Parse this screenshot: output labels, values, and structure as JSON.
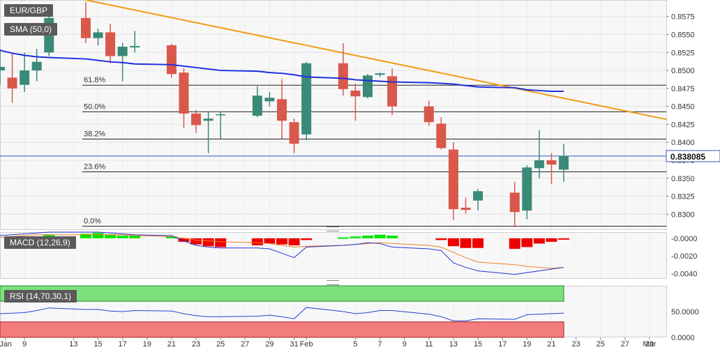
{
  "chart_data": {
    "type": "candlestick",
    "symbol": "EUR/GBP",
    "price_panel": {
      "label": "EUR/GBP",
      "ylim": [
        0.8278,
        0.8598
      ],
      "y_ticks": [
        "0.8575",
        "0.8550",
        "0.8525",
        "0.8500",
        "0.8475",
        "0.8450",
        "0.8425",
        "0.8400",
        "0.8375",
        "0.8350",
        "0.8325",
        "0.8300"
      ],
      "current_price": "0.838085",
      "candles": [
        {
          "d": "Jan 7",
          "o": 0.85,
          "h": 0.853,
          "l": 0.848,
          "c": 0.8505
        },
        {
          "d": "Jan 8",
          "o": 0.849,
          "h": 0.8525,
          "l": 0.8455,
          "c": 0.8475
        },
        {
          "d": "Jan 9",
          "o": 0.848,
          "h": 0.8525,
          "l": 0.847,
          "c": 0.85
        },
        {
          "d": "Jan 10",
          "o": 0.85,
          "h": 0.853,
          "l": 0.8485,
          "c": 0.8512
        },
        {
          "d": "Jan 11",
          "o": 0.8525,
          "h": 0.8585,
          "l": 0.852,
          "c": 0.8573
        },
        {
          "d": "Jan 14",
          "o": 0.8573,
          "h": 0.8595,
          "l": 0.8538,
          "c": 0.8545
        },
        {
          "d": "Jan 15",
          "o": 0.8545,
          "h": 0.8558,
          "l": 0.8535,
          "c": 0.8553
        },
        {
          "d": "Jan 16",
          "o": 0.8553,
          "h": 0.8565,
          "l": 0.851,
          "c": 0.852
        },
        {
          "d": "Jan 17",
          "o": 0.852,
          "h": 0.8538,
          "l": 0.8485,
          "c": 0.8533
        },
        {
          "d": "Jan 18",
          "o": 0.8532,
          "h": 0.8555,
          "l": 0.8525,
          "c": 0.8534
        },
        {
          "d": "Jan 21",
          "o": 0.8535,
          "h": 0.8537,
          "l": 0.849,
          "c": 0.8495
        },
        {
          "d": "Jan 22",
          "o": 0.8497,
          "h": 0.8503,
          "l": 0.842,
          "c": 0.844
        },
        {
          "d": "Jan 23",
          "o": 0.844,
          "h": 0.8445,
          "l": 0.8413,
          "c": 0.8424
        },
        {
          "d": "Jan 24",
          "o": 0.843,
          "h": 0.8443,
          "l": 0.8385,
          "c": 0.8433
        },
        {
          "d": "Jan 25",
          "o": 0.8438,
          "h": 0.8443,
          "l": 0.8405,
          "c": 0.8439
        },
        {
          "d": "Jan 28",
          "o": 0.8437,
          "h": 0.8478,
          "l": 0.8435,
          "c": 0.8465
        },
        {
          "d": "Jan 29",
          "o": 0.8457,
          "h": 0.847,
          "l": 0.845,
          "c": 0.8462
        },
        {
          "d": "Jan 30",
          "o": 0.846,
          "h": 0.8488,
          "l": 0.8405,
          "c": 0.843
        },
        {
          "d": "Jan 31",
          "o": 0.8428,
          "h": 0.8433,
          "l": 0.8385,
          "c": 0.8398
        },
        {
          "d": "Feb 1",
          "o": 0.8411,
          "h": 0.8512,
          "l": 0.8403,
          "c": 0.851
        },
        {
          "d": "Feb 4",
          "o": 0.851,
          "h": 0.8538,
          "l": 0.8465,
          "c": 0.8474
        },
        {
          "d": "Feb 5",
          "o": 0.8472,
          "h": 0.8482,
          "l": 0.843,
          "c": 0.8464
        },
        {
          "d": "Feb 6",
          "o": 0.8463,
          "h": 0.8495,
          "l": 0.8461,
          "c": 0.8493
        },
        {
          "d": "Feb 7",
          "o": 0.8494,
          "h": 0.8497,
          "l": 0.8491,
          "c": 0.8496
        },
        {
          "d": "Feb 8",
          "o": 0.8492,
          "h": 0.8503,
          "l": 0.8438,
          "c": 0.845
        },
        {
          "d": "Feb 11",
          "o": 0.845,
          "h": 0.8458,
          "l": 0.8423,
          "c": 0.8428
        },
        {
          "d": "Feb 12",
          "o": 0.8426,
          "h": 0.8435,
          "l": 0.839,
          "c": 0.8392
        },
        {
          "d": "Feb 13",
          "o": 0.839,
          "h": 0.84,
          "l": 0.8292,
          "c": 0.8307
        },
        {
          "d": "Feb 14",
          "o": 0.8309,
          "h": 0.8323,
          "l": 0.8301,
          "c": 0.8306
        },
        {
          "d": "Feb 15",
          "o": 0.8319,
          "h": 0.8335,
          "l": 0.8305,
          "c": 0.8332
        },
        {
          "d": "Feb 18",
          "o": 0.833,
          "h": 0.8345,
          "l": 0.8282,
          "c": 0.8303
        },
        {
          "d": "Feb 19",
          "o": 0.8305,
          "h": 0.8368,
          "l": 0.8293,
          "c": 0.8365
        },
        {
          "d": "Feb 20",
          "o": 0.8364,
          "h": 0.8417,
          "l": 0.835,
          "c": 0.8375
        },
        {
          "d": "Feb 21",
          "o": 0.8375,
          "h": 0.8385,
          "l": 0.8342,
          "c": 0.8369
        },
        {
          "d": "Feb 22",
          "o": 0.8362,
          "h": 0.8398,
          "l": 0.8345,
          "c": 0.8381
        }
      ],
      "sma": {
        "label": "SMA (50,0)",
        "color": "#1d2fe0",
        "values": [
          0.8528,
          0.8524,
          0.8521,
          0.8519,
          0.8518,
          0.8516,
          0.8514,
          0.8512,
          0.8511,
          0.8509,
          0.8508,
          0.8506,
          0.8504,
          0.8502,
          0.85,
          0.8499,
          0.8497,
          0.8496,
          0.8494,
          0.8491,
          0.8489,
          0.8487,
          0.8486,
          0.8485,
          0.8484,
          0.8483,
          0.8482,
          0.8481,
          0.8479,
          0.8477,
          0.8476,
          0.8473,
          0.8472,
          0.8471,
          0.8471
        ]
      },
      "trendline": {
        "color": "#f39c12",
        "points": [
          {
            "x": "Jan 14",
            "y": 0.8598
          },
          {
            "x": "Mar 1",
            "y": 0.8432
          }
        ]
      },
      "fibonacci": [
        {
          "label": "61.8%",
          "value": 0.84795
        },
        {
          "label": "50.0%",
          "value": 0.84425
        },
        {
          "label": "38.2%",
          "value": 0.84045
        },
        {
          "label": "23.6%",
          "value": 0.8359
        },
        {
          "label": "0.0%",
          "value": 0.82833
        }
      ]
    },
    "macd_panel": {
      "label": "MACD (12,26,9)",
      "ylim": [
        -0.0046,
        0.0007
      ],
      "y_ticks": [
        "-0.0000",
        "-0.0020",
        "-0.0040"
      ],
      "histogram": [
        0,
        0,
        0,
        0,
        0.0004,
        0.0005,
        0.0006,
        0.0004,
        0.0003,
        0.0003,
        0.0002,
        -0.0004,
        -0.0007,
        -0.0009,
        -0.001,
        -0.0008,
        -0.0006,
        -0.0007,
        -0.0008,
        -0.0002,
        0.0001,
        0.0002,
        0.0003,
        0.0004,
        0.0003,
        0,
        -0.0002,
        -0.0009,
        -0.0011,
        -0.0011,
        -0.0012,
        -0.001,
        -0.0006,
        -0.0004,
        -0.0001
      ],
      "macd_line": [
        0.0003,
        0.0004,
        0.0005,
        0.0006,
        0.0007,
        0.0007,
        0.0007,
        0.0006,
        0.0005,
        0.0004,
        0.0003,
        -0.0003,
        -0.0008,
        -0.001,
        -0.0011,
        -0.0011,
        -0.0012,
        -0.0017,
        -0.0022,
        -0.001,
        -0.0008,
        -0.0007,
        -0.0005,
        -0.0006,
        -0.001,
        -0.0012,
        -0.0014,
        -0.0028,
        -0.0033,
        -0.0037,
        -0.0041,
        -0.0039,
        -0.0037,
        -0.0035,
        -0.0033
      ],
      "signal_line": [
        0.0001,
        0.0002,
        0.0003,
        0.0004,
        0.0004,
        0.0004,
        0.0004,
        0.0004,
        0.0004,
        0.0003,
        0.0002,
        0.0,
        -0.0002,
        -0.0003,
        -0.0004,
        -0.0005,
        -0.0006,
        -0.0008,
        -0.001,
        -0.0009,
        -0.0008,
        -0.0007,
        -0.0006,
        -0.0005,
        -0.0006,
        -0.0008,
        -0.001,
        -0.0016,
        -0.0022,
        -0.0027,
        -0.003,
        -0.0032,
        -0.0033,
        -0.0034,
        -0.0033
      ]
    },
    "rsi_panel": {
      "label": "RSI (14,70,30,1)",
      "ylim": [
        0,
        100
      ],
      "y_ticks": [
        "50.0000",
        "0.0000"
      ],
      "overbought": 70,
      "oversold": 30,
      "values": [
        46,
        47,
        48,
        52,
        57,
        54,
        54,
        51,
        50,
        52,
        51,
        46,
        42,
        40,
        40,
        41,
        43,
        40,
        36,
        58,
        50,
        46,
        48,
        52,
        52,
        45,
        40,
        32,
        32,
        36,
        35,
        44,
        45,
        46,
        47
      ]
    },
    "x_ticks": [
      "Jan",
      "9",
      "13",
      "15",
      "17",
      "19",
      "21",
      "23",
      "25",
      "27",
      "29",
      "31",
      "Feb",
      "5",
      "7",
      "9",
      "11",
      "13",
      "15",
      "17",
      "19",
      "21",
      "23",
      "25",
      "27",
      "29",
      "Mar"
    ]
  },
  "colors": {
    "bull": "#3a8a78",
    "bear": "#d9584b",
    "macd_pos": "#00e600",
    "macd_neg": "#ee0000",
    "macd_line": "#2233cc",
    "signal_line": "#f08020",
    "rsi_line": "#2244cc",
    "rsi_high": "#7de07d",
    "rsi_low": "#f37c7c"
  }
}
